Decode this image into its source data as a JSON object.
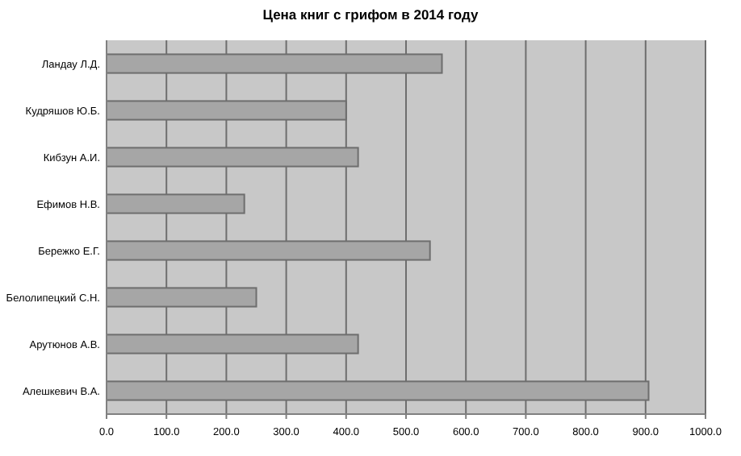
{
  "chart_data": {
    "type": "bar",
    "orientation": "horizontal",
    "title": "Цена книг с грифом в 2014 году",
    "categories": [
      "Ландау Л.Д.",
      "Кудряшов Ю.Б.",
      "Кибзун А.И.",
      "Ефимов Н.В.",
      "Бережко Е.Г.",
      "Белолипецкий С.Н.",
      "Арутюнов А.В.",
      "Алешкевич В.А."
    ],
    "values": [
      560,
      400,
      420,
      230,
      540,
      250,
      420,
      905
    ],
    "color": "#a6a6a6",
    "xlim": [
      0,
      1000
    ],
    "xticks": [
      {
        "value": 0,
        "label": "0.0"
      },
      {
        "value": 100,
        "label": "100.0"
      },
      {
        "value": 200,
        "label": "200.0"
      },
      {
        "value": 300,
        "label": "300.0"
      },
      {
        "value": 400,
        "label": "400.0"
      },
      {
        "value": 500,
        "label": "500.0"
      },
      {
        "value": 600,
        "label": "600.0"
      },
      {
        "value": 700,
        "label": "700.0"
      },
      {
        "value": 800,
        "label": "800.0"
      },
      {
        "value": 900,
        "label": "900.0"
      },
      {
        "value": 1000,
        "label": "1000.0"
      }
    ],
    "grid": "x"
  }
}
